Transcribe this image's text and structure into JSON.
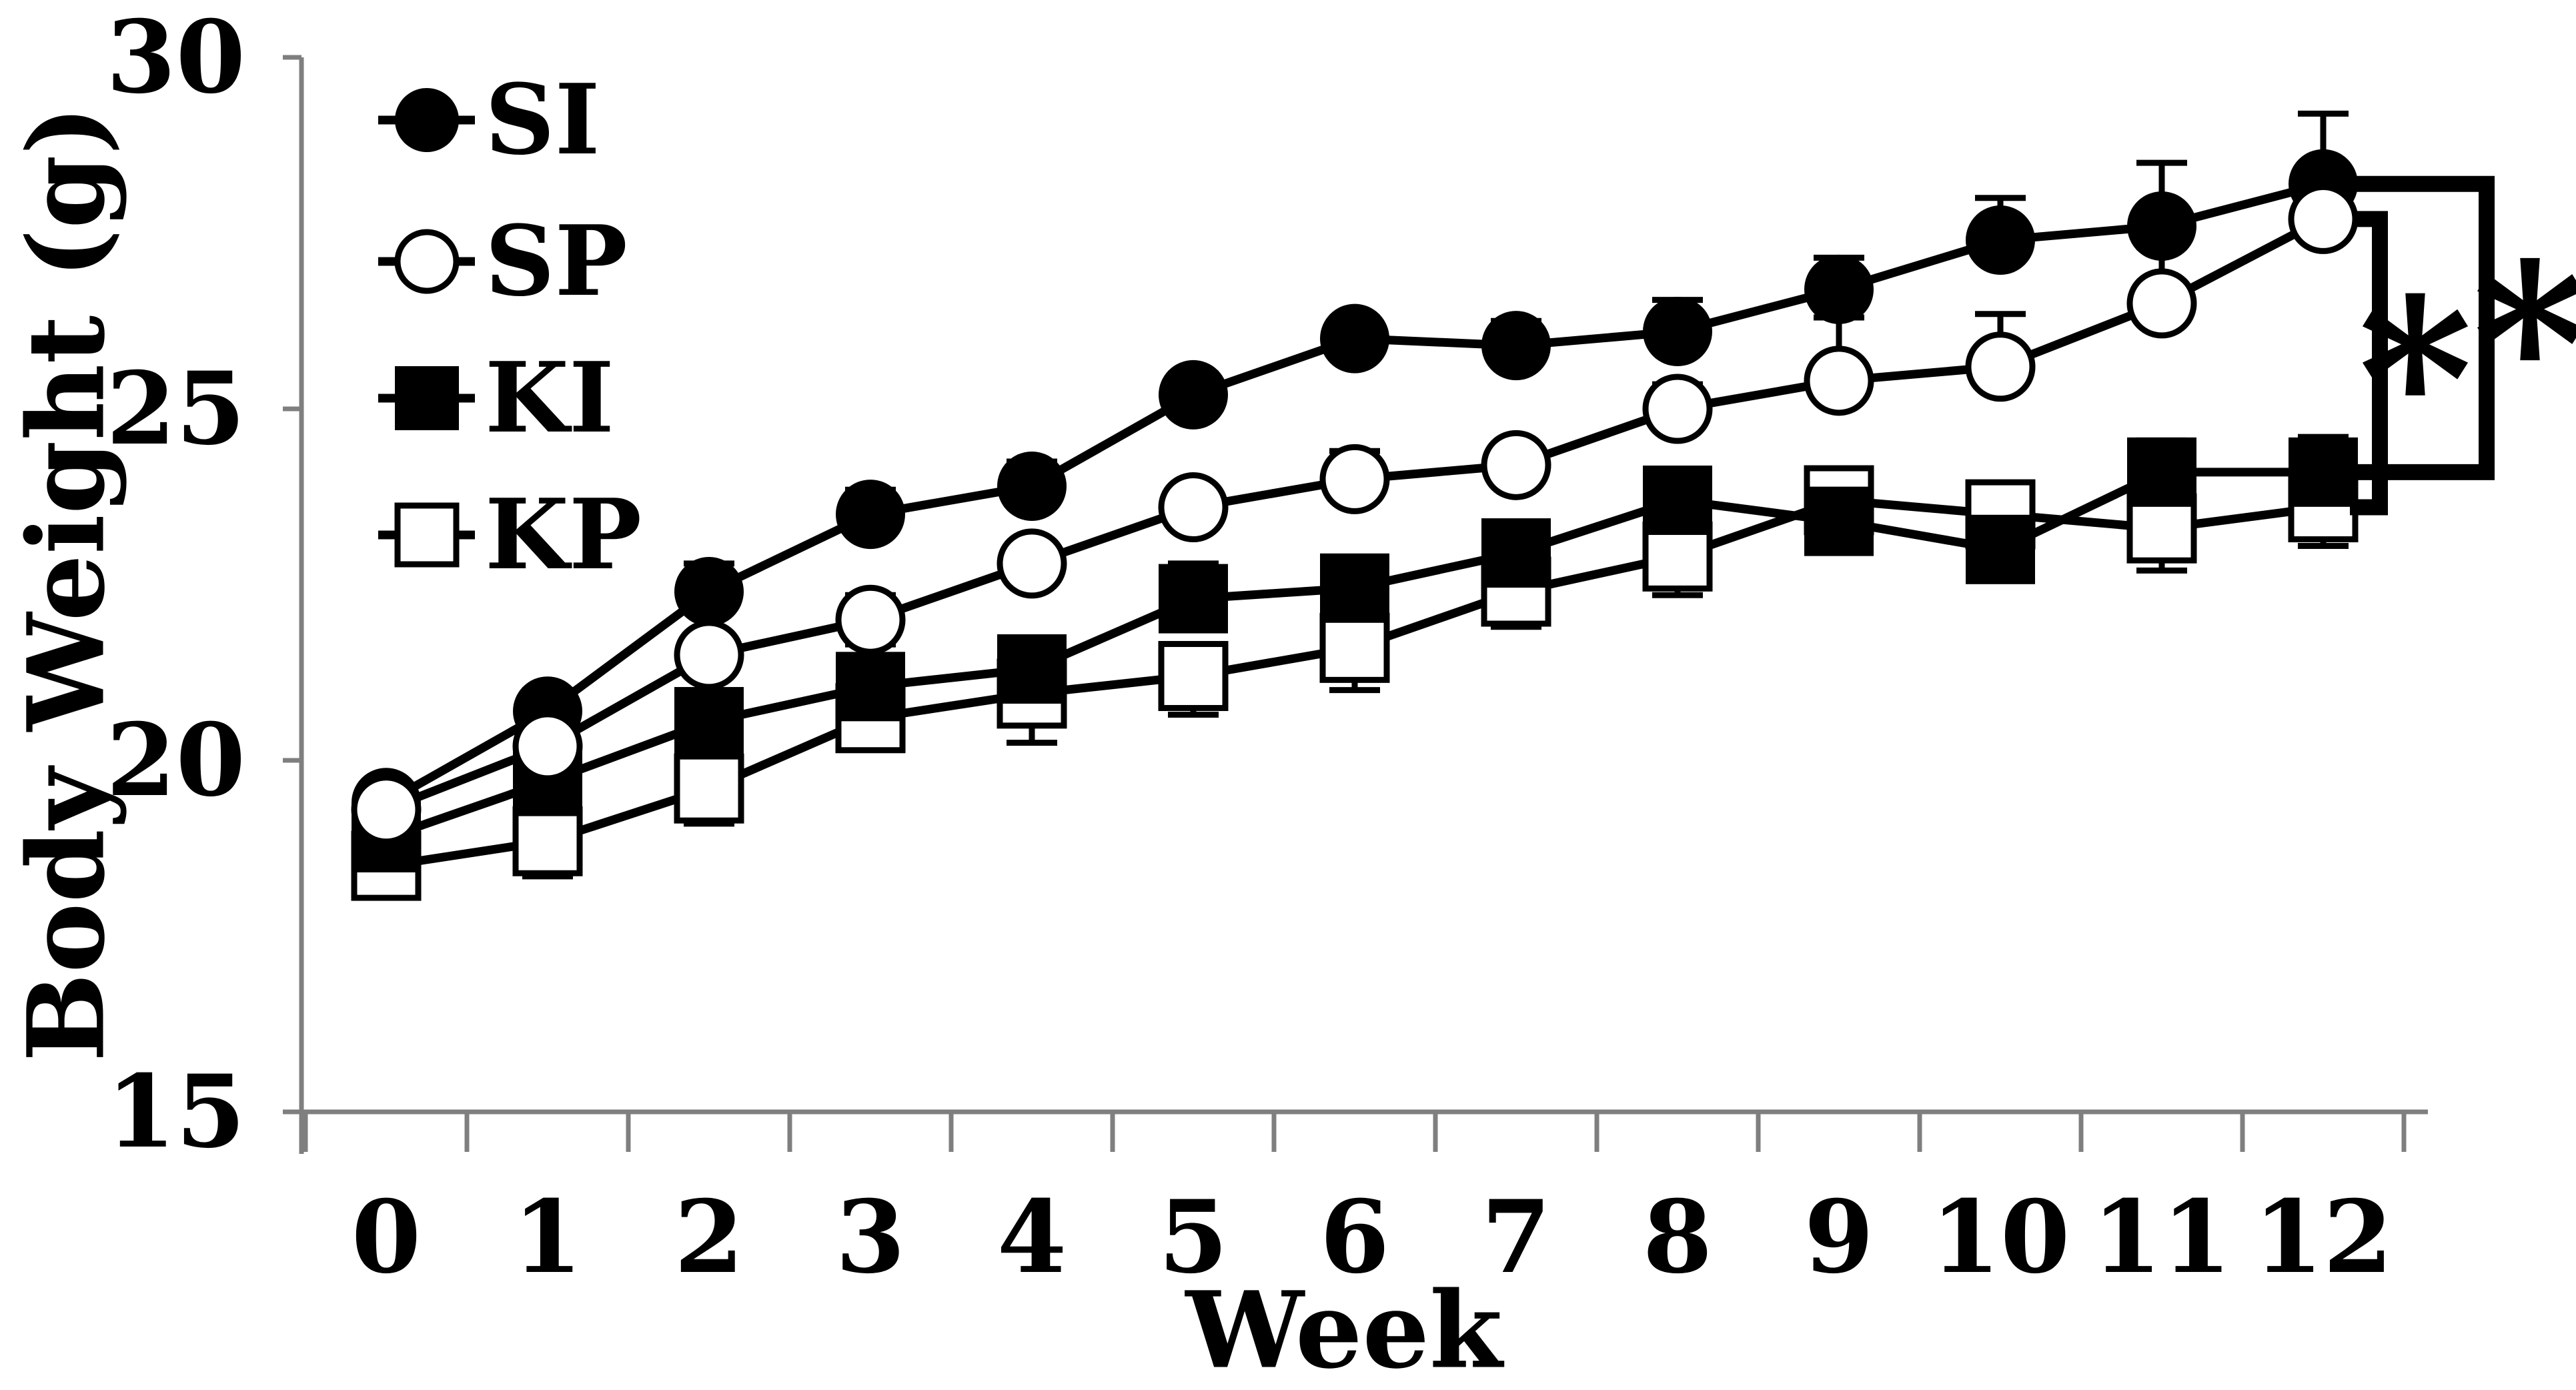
{
  "figure": {
    "background": "#ffffff",
    "ink_color": "#000000",
    "axis_color": "#7f7f7f"
  },
  "chart_data": {
    "type": "line",
    "title": "",
    "xlabel": "Week",
    "ylabel": "Body Weight (g)",
    "x": [
      0,
      1,
      2,
      3,
      4,
      5,
      6,
      7,
      8,
      9,
      10,
      11,
      12
    ],
    "x_ticklabels": [
      "0",
      "1",
      "2",
      "3",
      "4",
      "5",
      "6",
      "7",
      "8",
      "9",
      "10",
      "11",
      "12"
    ],
    "ylim": [
      15,
      30
    ],
    "yticks": [
      30,
      25,
      20,
      15
    ],
    "ytick_labels": [
      "30",
      "25",
      "20",
      "15"
    ],
    "grid": "off",
    "legend_position": "upper-left-inside",
    "series": [
      {
        "name": "SI",
        "marker": "filled-circle",
        "values": [
          19.4,
          20.7,
          22.4,
          23.5,
          23.9,
          25.2,
          26.0,
          25.9,
          26.1,
          26.7,
          27.4,
          27.6,
          28.2
        ],
        "err_up": [
          0.25,
          0.3,
          0.4,
          0.35,
          0.35,
          0.3,
          0.3,
          0.35,
          0.45,
          0.45,
          0.6,
          0.9,
          1.0
        ],
        "err_down": [
          0,
          0,
          0,
          0,
          0,
          0,
          0,
          0,
          0,
          0,
          0,
          0,
          0
        ]
      },
      {
        "name": "SP",
        "marker": "open-circle",
        "values": [
          19.3,
          20.2,
          21.5,
          22.0,
          22.8,
          23.6,
          24.0,
          24.2,
          25.0,
          25.4,
          25.6,
          26.5,
          27.7
        ],
        "err_up": [
          0.2,
          0.25,
          0.3,
          0.35,
          0.25,
          0.3,
          0.4,
          0.3,
          0.35,
          0.9,
          0.75,
          0.8,
          0.3
        ],
        "err_down": [
          0,
          0,
          0,
          0,
          0,
          0,
          0,
          0,
          0,
          0,
          0,
          0,
          0
        ]
      },
      {
        "name": "KI",
        "marker": "filled-square",
        "values": [
          18.9,
          19.7,
          20.55,
          21.05,
          21.3,
          22.3,
          22.45,
          22.95,
          23.7,
          23.4,
          23.0,
          24.1,
          24.1
        ],
        "err_up": [
          0.2,
          0.2,
          0.3,
          0.6,
          0.3,
          0.5,
          0.35,
          0.25,
          0.2,
          0.2,
          0.2,
          0.45,
          0.5
        ],
        "err_down": [
          0,
          0,
          0,
          0,
          0,
          0,
          0,
          0,
          0,
          0,
          0,
          0,
          0
        ]
      },
      {
        "name": "KP",
        "marker": "open-square",
        "values": [
          18.5,
          18.85,
          19.6,
          20.6,
          20.95,
          21.2,
          21.6,
          22.4,
          22.9,
          23.7,
          23.5,
          23.3,
          23.6
        ],
        "err_up": [
          0,
          0,
          0,
          0,
          0,
          0,
          0,
          0,
          0,
          0,
          0,
          0,
          0
        ],
        "err_down": [
          0.35,
          0.5,
          0.5,
          0.3,
          0.7,
          0.55,
          0.6,
          0.5,
          0.55,
          0.3,
          0.35,
          0.6,
          0.55
        ]
      }
    ],
    "legend_entries": [
      "SI",
      "SP",
      "KI",
      "KP"
    ],
    "annotations": {
      "significance_brackets": [
        {
          "week": 12,
          "from_series": "SP",
          "to_series": "KP",
          "label": "*"
        },
        {
          "week": 12,
          "from_series": "SI",
          "to_series": "KI",
          "label": "*"
        }
      ]
    }
  }
}
